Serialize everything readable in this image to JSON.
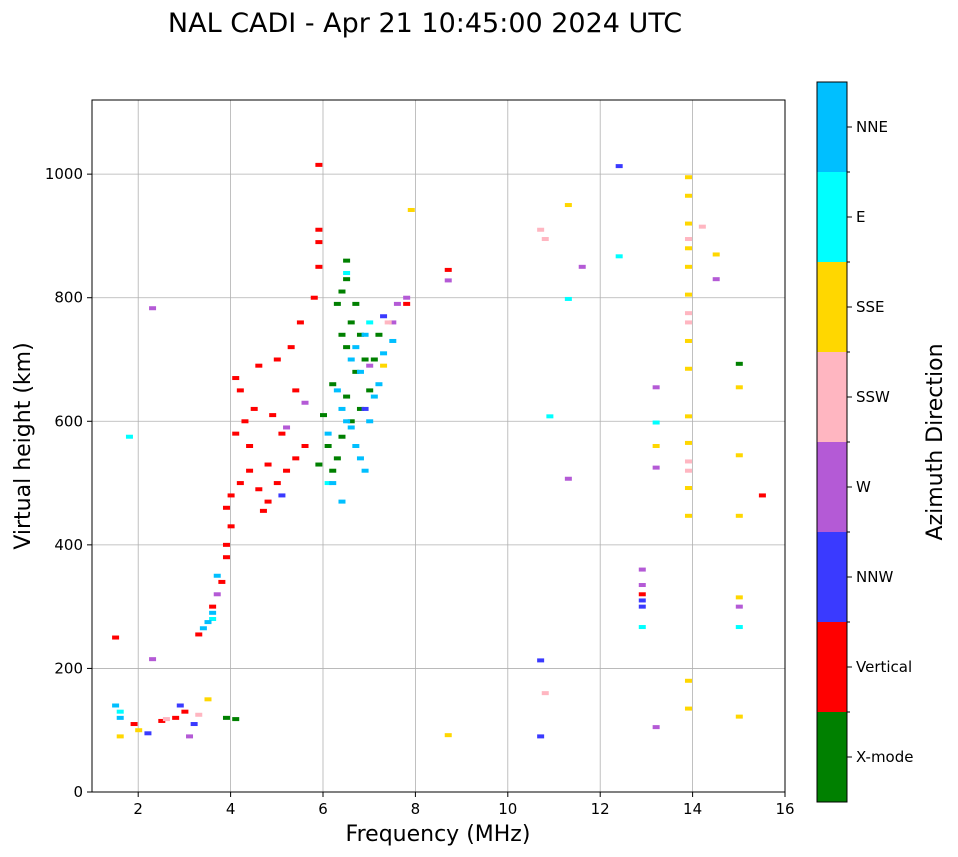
{
  "chart_data": {
    "type": "scatter",
    "subtype": "ionogram",
    "title": "NAL CADI - Apr 21 10:45:00 2024 UTC",
    "xlabel": "Frequency (MHz)",
    "ylabel": "Virtual height (km)",
    "xlim": [
      1,
      16
    ],
    "ylim": [
      0,
      1120
    ],
    "xticks": [
      2,
      4,
      6,
      8,
      10,
      12,
      14,
      16
    ],
    "yticks": [
      0,
      200,
      400,
      600,
      800,
      1000
    ],
    "grid": true,
    "colorbar": {
      "label": "Azimuth Direction",
      "categories": [
        {
          "name": "X-mode",
          "color": "#008000"
        },
        {
          "name": "Vertical",
          "color": "#ff0000"
        },
        {
          "name": "NNW",
          "color": "#3a3aff"
        },
        {
          "name": "W",
          "color": "#b45ad6"
        },
        {
          "name": "SSW",
          "color": "#ffb6c1"
        },
        {
          "name": "SSE",
          "color": "#ffd700"
        },
        {
          "name": "E",
          "color": "#00ffff"
        },
        {
          "name": "NNE",
          "color": "#00bfff"
        }
      ]
    },
    "series": [
      {
        "name": "X-mode",
        "points": [
          [
            6.2,
            520
          ],
          [
            6.3,
            540
          ],
          [
            6.1,
            560
          ],
          [
            6.4,
            575
          ],
          [
            6.6,
            600
          ],
          [
            6.8,
            620
          ],
          [
            6.5,
            640
          ],
          [
            7.0,
            650
          ],
          [
            6.7,
            680
          ],
          [
            6.9,
            700
          ],
          [
            6.5,
            720
          ],
          [
            6.4,
            740
          ],
          [
            6.6,
            760
          ],
          [
            6.3,
            790
          ],
          [
            6.5,
            830
          ],
          [
            6.5,
            860
          ],
          [
            3.9,
            120
          ],
          [
            4.1,
            118
          ],
          [
            7.2,
            740
          ],
          [
            15.0,
            693
          ],
          [
            5.9,
            530
          ],
          [
            6.0,
            610
          ],
          [
            6.2,
            660
          ],
          [
            6.8,
            740
          ],
          [
            7.1,
            700
          ],
          [
            6.4,
            810
          ],
          [
            6.7,
            790
          ]
        ]
      },
      {
        "name": "Vertical",
        "points": [
          [
            1.5,
            250
          ],
          [
            3.3,
            255
          ],
          [
            3.6,
            300
          ],
          [
            3.8,
            340
          ],
          [
            3.9,
            380
          ],
          [
            3.9,
            400
          ],
          [
            4.0,
            430
          ],
          [
            3.9,
            460
          ],
          [
            4.0,
            480
          ],
          [
            4.2,
            500
          ],
          [
            4.4,
            520
          ],
          [
            4.6,
            490
          ],
          [
            4.8,
            470
          ],
          [
            5.0,
            500
          ],
          [
            5.2,
            520
          ],
          [
            5.4,
            540
          ],
          [
            5.6,
            560
          ],
          [
            4.1,
            580
          ],
          [
            4.3,
            600
          ],
          [
            4.5,
            620
          ],
          [
            4.2,
            650
          ],
          [
            4.1,
            670
          ],
          [
            4.6,
            690
          ],
          [
            5.0,
            700
          ],
          [
            5.3,
            720
          ],
          [
            5.5,
            760
          ],
          [
            5.8,
            800
          ],
          [
            5.9,
            850
          ],
          [
            5.9,
            890
          ],
          [
            5.9,
            910
          ],
          [
            5.9,
            1015
          ],
          [
            7.8,
            790
          ],
          [
            8.7,
            845
          ],
          [
            15.5,
            480
          ],
          [
            12.9,
            320
          ],
          [
            2.5,
            115
          ],
          [
            2.8,
            120
          ],
          [
            3.0,
            130
          ],
          [
            1.9,
            110
          ],
          [
            4.7,
            455
          ],
          [
            5.1,
            580
          ],
          [
            4.9,
            610
          ],
          [
            5.4,
            650
          ],
          [
            4.4,
            560
          ],
          [
            4.8,
            530
          ]
        ]
      },
      {
        "name": "NNW",
        "points": [
          [
            10.7,
            90
          ],
          [
            10.7,
            213
          ],
          [
            12.4,
            1013
          ],
          [
            12.9,
            300
          ],
          [
            12.9,
            310
          ],
          [
            2.9,
            140
          ],
          [
            3.2,
            110
          ],
          [
            2.2,
            95
          ],
          [
            5.1,
            480
          ],
          [
            6.9,
            620
          ],
          [
            7.3,
            770
          ]
        ]
      },
      {
        "name": "W",
        "points": [
          [
            2.3,
            783
          ],
          [
            2.3,
            215
          ],
          [
            3.7,
            320
          ],
          [
            7.6,
            790
          ],
          [
            7.8,
            800
          ],
          [
            8.7,
            828
          ],
          [
            11.3,
            507
          ],
          [
            11.6,
            850
          ],
          [
            12.9,
            360
          ],
          [
            12.9,
            335
          ],
          [
            13.2,
            525
          ],
          [
            13.2,
            655
          ],
          [
            13.2,
            105
          ],
          [
            14.5,
            830
          ],
          [
            15.0,
            300
          ],
          [
            3.1,
            90
          ],
          [
            5.2,
            590
          ],
          [
            7.5,
            760
          ],
          [
            7.0,
            690
          ],
          [
            5.6,
            630
          ]
        ]
      },
      {
        "name": "SSW",
        "points": [
          [
            10.7,
            910
          ],
          [
            10.8,
            895
          ],
          [
            10.8,
            160
          ],
          [
            13.9,
            895
          ],
          [
            13.9,
            775
          ],
          [
            13.9,
            760
          ],
          [
            13.9,
            535
          ],
          [
            13.9,
            520
          ],
          [
            14.2,
            915
          ],
          [
            7.4,
            760
          ],
          [
            2.6,
            118
          ],
          [
            3.3,
            125
          ]
        ]
      },
      {
        "name": "SSE",
        "points": [
          [
            1.6,
            90
          ],
          [
            3.5,
            150
          ],
          [
            7.9,
            942
          ],
          [
            8.7,
            92
          ],
          [
            11.3,
            950
          ],
          [
            13.2,
            560
          ],
          [
            13.9,
            995
          ],
          [
            13.9,
            965
          ],
          [
            13.9,
            920
          ],
          [
            13.9,
            880
          ],
          [
            13.9,
            850
          ],
          [
            13.9,
            805
          ],
          [
            13.9,
            730
          ],
          [
            13.9,
            685
          ],
          [
            13.9,
            608
          ],
          [
            13.9,
            565
          ],
          [
            13.9,
            492
          ],
          [
            13.9,
            447
          ],
          [
            13.9,
            180
          ],
          [
            13.9,
            135
          ],
          [
            14.5,
            870
          ],
          [
            15.0,
            655
          ],
          [
            15.0,
            545
          ],
          [
            15.0,
            447
          ],
          [
            15.0,
            315
          ],
          [
            15.0,
            122
          ],
          [
            2.0,
            100
          ],
          [
            7.3,
            690
          ]
        ]
      },
      {
        "name": "E",
        "points": [
          [
            1.8,
            575
          ],
          [
            10.9,
            608
          ],
          [
            11.3,
            798
          ],
          [
            12.4,
            867
          ],
          [
            13.2,
            598
          ],
          [
            12.9,
            267
          ],
          [
            15.0,
            267
          ],
          [
            6.5,
            840
          ],
          [
            7.0,
            760
          ],
          [
            6.1,
            500
          ],
          [
            3.6,
            280
          ],
          [
            1.6,
            130
          ]
        ]
      },
      {
        "name": "NNE",
        "points": [
          [
            1.5,
            140
          ],
          [
            1.6,
            120
          ],
          [
            3.4,
            265
          ],
          [
            3.5,
            275
          ],
          [
            3.6,
            290
          ],
          [
            3.7,
            350
          ],
          [
            6.3,
            650
          ],
          [
            6.4,
            620
          ],
          [
            6.5,
            600
          ],
          [
            6.6,
            590
          ],
          [
            6.7,
            560
          ],
          [
            6.8,
            540
          ],
          [
            6.9,
            520
          ],
          [
            7.0,
            600
          ],
          [
            7.1,
            640
          ],
          [
            6.8,
            680
          ],
          [
            7.2,
            660
          ],
          [
            6.6,
            700
          ],
          [
            6.7,
            720
          ],
          [
            6.9,
            740
          ],
          [
            7.3,
            710
          ],
          [
            7.5,
            730
          ],
          [
            6.1,
            580
          ],
          [
            6.2,
            500
          ],
          [
            6.4,
            470
          ]
        ]
      }
    ]
  }
}
